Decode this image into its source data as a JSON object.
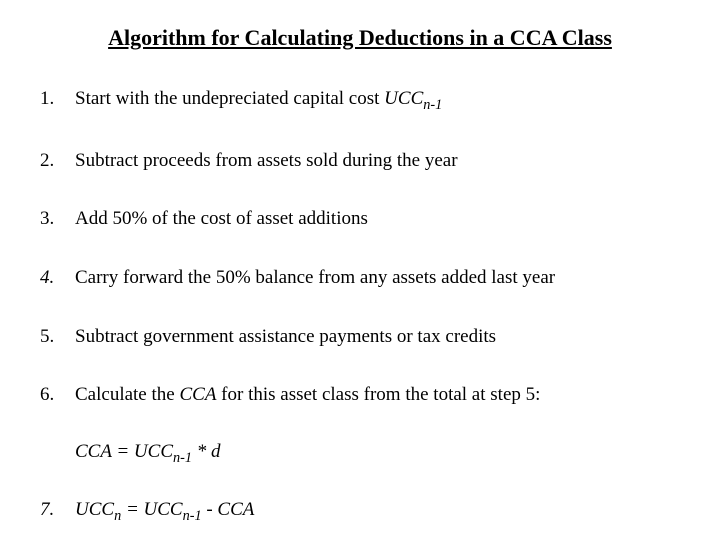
{
  "title": "Algorithm for Calculating Deductions in a CCA Class",
  "items": [
    {
      "num": "1.",
      "text_pre": "Start with the undepreciated capital cost ",
      "var": "UCC",
      "sub": "n-1",
      "text_post": ""
    },
    {
      "num": "2.",
      "text": "Subtract proceeds from assets sold during the year"
    },
    {
      "num": "3.",
      "text": "Add 50% of the cost of asset additions"
    },
    {
      "num": "4.",
      "text": "Carry forward the 50% balance from any assets added last year",
      "italic_num": true
    },
    {
      "num": "5.",
      "text": "Subtract government assistance payments or tax credits"
    },
    {
      "num": "6.",
      "text_pre": "Calculate the ",
      "mid_var": "CCA",
      "text_post": " for this asset class from the total at step 5:"
    }
  ],
  "formula": {
    "lhs": "CCA = UCC",
    "sub": "n-1",
    "rhs": " * d"
  },
  "item7": {
    "num": "7.",
    "pre": "UCC",
    "sub1": "n",
    "mid": " = UCC",
    "sub2": "n-1",
    "post": " - CCA"
  }
}
